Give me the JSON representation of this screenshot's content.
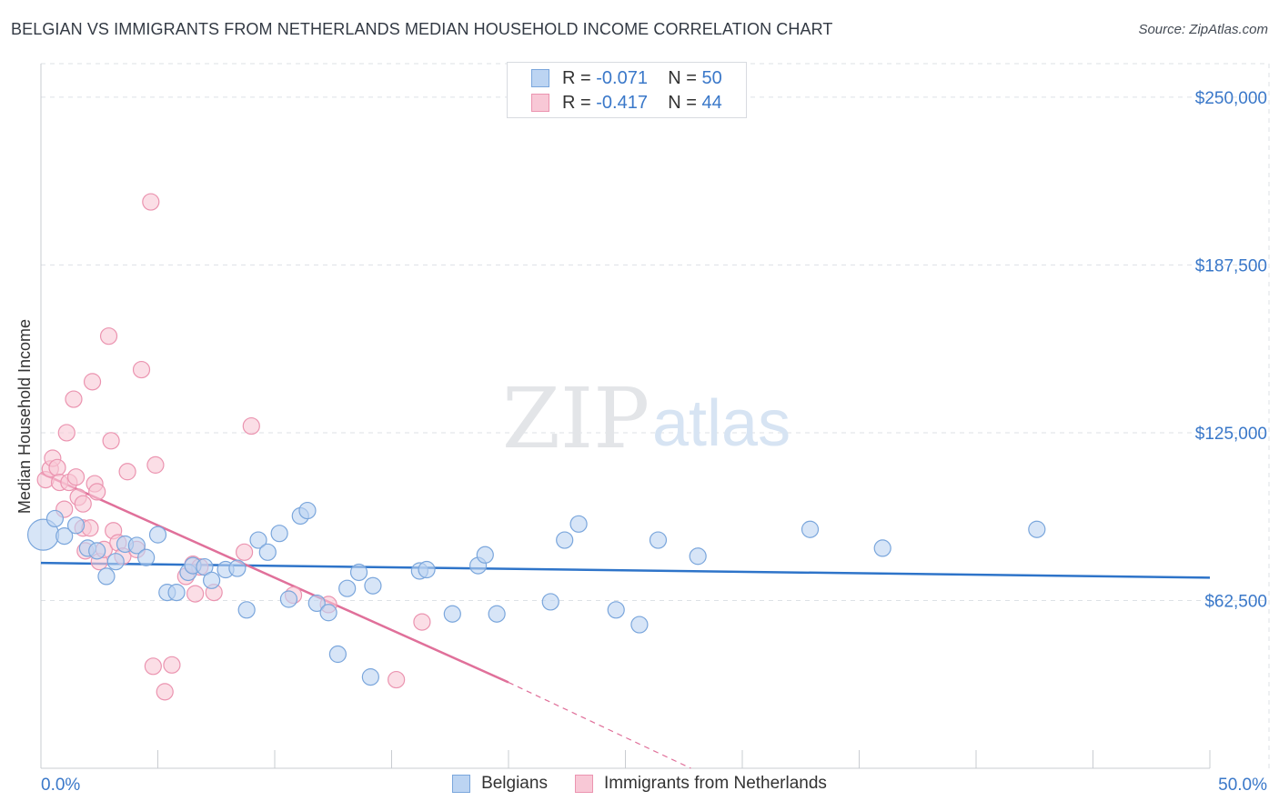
{
  "header": {
    "title": "BELGIAN VS IMMIGRANTS FROM NETHERLANDS MEDIAN HOUSEHOLD INCOME CORRELATION CHART",
    "source": "Source: ZipAtlas.com"
  },
  "watermark": {
    "zip": "ZIP",
    "atlas": "atlas"
  },
  "legend_top": [
    {
      "r_label": "R =",
      "r_value": "-0.071",
      "n_label": "N =",
      "n_value": "50"
    },
    {
      "r_label": "R =",
      "r_value": "-0.417",
      "n_label": "N =",
      "n_value": "44"
    }
  ],
  "legend_bottom": [
    "Belgians",
    "Immigrants from Netherlands"
  ],
  "colors": {
    "blue_fill": "#bcd4f2",
    "blue_stroke": "#7aa6dc",
    "blue_line": "#2e74c9",
    "pink_fill": "#f8c8d6",
    "pink_stroke": "#eb94b0",
    "pink_line": "#e0709a",
    "tick_label": "#3a78c9",
    "grid": "#dde1e6"
  },
  "chart_data": {
    "type": "scatter",
    "title": "BELGIAN VS IMMIGRANTS FROM NETHERLANDS MEDIAN HOUSEHOLD INCOME CORRELATION CHART",
    "xlabel": "",
    "ylabel": "Median Household Income",
    "xlim": [
      0,
      50
    ],
    "ylim": [
      0,
      262500
    ],
    "x_ticks_labeled": [
      "0.0%",
      "50.0%"
    ],
    "y_ticks": [
      62500,
      125000,
      187500,
      250000
    ],
    "y_tick_labels": [
      "$62,500",
      "$125,000",
      "$187,500",
      "$250,000"
    ],
    "grid": true,
    "legend_position": "bottom",
    "series": [
      {
        "name": "Belgians",
        "r": -0.071,
        "n": 50,
        "trend": {
          "x": [
            0,
            50
          ],
          "y": [
            76500,
            71000
          ]
        },
        "points": [
          {
            "x": 0.1,
            "y": 87000,
            "big": true
          },
          {
            "x": 0.6,
            "y": 93000
          },
          {
            "x": 1.0,
            "y": 86500
          },
          {
            "x": 1.5,
            "y": 90500
          },
          {
            "x": 2.0,
            "y": 82000
          },
          {
            "x": 2.4,
            "y": 81000
          },
          {
            "x": 2.8,
            "y": 71500
          },
          {
            "x": 3.2,
            "y": 77000
          },
          {
            "x": 3.6,
            "y": 83500
          },
          {
            "x": 4.1,
            "y": 83000
          },
          {
            "x": 4.5,
            "y": 78500
          },
          {
            "x": 5.0,
            "y": 87000
          },
          {
            "x": 5.4,
            "y": 65500
          },
          {
            "x": 5.8,
            "y": 65500
          },
          {
            "x": 6.3,
            "y": 73000
          },
          {
            "x": 6.5,
            "y": 75500
          },
          {
            "x": 7.0,
            "y": 75000
          },
          {
            "x": 7.3,
            "y": 70000
          },
          {
            "x": 7.9,
            "y": 74000
          },
          {
            "x": 8.4,
            "y": 74500
          },
          {
            "x": 8.8,
            "y": 59000
          },
          {
            "x": 9.3,
            "y": 85000
          },
          {
            "x": 9.7,
            "y": 80500
          },
          {
            "x": 10.2,
            "y": 87500
          },
          {
            "x": 10.6,
            "y": 63000
          },
          {
            "x": 11.1,
            "y": 94000
          },
          {
            "x": 11.4,
            "y": 96000
          },
          {
            "x": 11.8,
            "y": 61500
          },
          {
            "x": 12.3,
            "y": 58000
          },
          {
            "x": 12.7,
            "y": 42500
          },
          {
            "x": 13.1,
            "y": 67000
          },
          {
            "x": 13.6,
            "y": 73000
          },
          {
            "x": 14.1,
            "y": 34000
          },
          {
            "x": 14.2,
            "y": 68000
          },
          {
            "x": 16.2,
            "y": 73500
          },
          {
            "x": 16.5,
            "y": 74000
          },
          {
            "x": 17.6,
            "y": 57500
          },
          {
            "x": 18.7,
            "y": 75500
          },
          {
            "x": 19.0,
            "y": 79500
          },
          {
            "x": 19.5,
            "y": 57500
          },
          {
            "x": 21.8,
            "y": 62000
          },
          {
            "x": 22.4,
            "y": 85000
          },
          {
            "x": 23.0,
            "y": 91000
          },
          {
            "x": 24.6,
            "y": 59000
          },
          {
            "x": 25.6,
            "y": 53500
          },
          {
            "x": 26.4,
            "y": 85000
          },
          {
            "x": 28.1,
            "y": 79000
          },
          {
            "x": 32.9,
            "y": 89000
          },
          {
            "x": 36.0,
            "y": 82000
          },
          {
            "x": 42.6,
            "y": 89000
          }
        ]
      },
      {
        "name": "Immigrants from Netherlands",
        "r": -0.417,
        "n": 44,
        "trend": {
          "x": [
            0,
            20
          ],
          "y": [
            110000,
            32000
          ]
        },
        "trend_dashed": {
          "x": [
            20,
            27.8
          ],
          "y": [
            32000,
            0
          ]
        },
        "points": [
          {
            "x": 0.2,
            "y": 107500
          },
          {
            "x": 0.4,
            "y": 111500
          },
          {
            "x": 0.5,
            "y": 115500
          },
          {
            "x": 0.7,
            "y": 112000
          },
          {
            "x": 0.8,
            "y": 106500
          },
          {
            "x": 1.0,
            "y": 96500
          },
          {
            "x": 1.1,
            "y": 125000
          },
          {
            "x": 1.2,
            "y": 106500
          },
          {
            "x": 1.4,
            "y": 137500
          },
          {
            "x": 1.5,
            "y": 108500
          },
          {
            "x": 1.6,
            "y": 101000
          },
          {
            "x": 1.8,
            "y": 89500
          },
          {
            "x": 1.8,
            "y": 98500
          },
          {
            "x": 1.9,
            "y": 81000
          },
          {
            "x": 2.1,
            "y": 89500
          },
          {
            "x": 2.2,
            "y": 144000
          },
          {
            "x": 2.3,
            "y": 106000
          },
          {
            "x": 2.4,
            "y": 103000
          },
          {
            "x": 2.5,
            "y": 77000
          },
          {
            "x": 2.7,
            "y": 81500
          },
          {
            "x": 2.9,
            "y": 161000
          },
          {
            "x": 3.0,
            "y": 122000
          },
          {
            "x": 3.1,
            "y": 88500
          },
          {
            "x": 3.3,
            "y": 84000
          },
          {
            "x": 3.5,
            "y": 79000
          },
          {
            "x": 3.7,
            "y": 110500
          },
          {
            "x": 4.1,
            "y": 81500
          },
          {
            "x": 4.3,
            "y": 148500
          },
          {
            "x": 4.7,
            "y": 211000
          },
          {
            "x": 4.8,
            "y": 38000
          },
          {
            "x": 4.9,
            "y": 113000
          },
          {
            "x": 5.3,
            "y": 28500
          },
          {
            "x": 5.6,
            "y": 38500
          },
          {
            "x": 6.2,
            "y": 71500
          },
          {
            "x": 6.5,
            "y": 76000
          },
          {
            "x": 6.6,
            "y": 65000
          },
          {
            "x": 7.4,
            "y": 65500
          },
          {
            "x": 8.7,
            "y": 80500
          },
          {
            "x": 9.0,
            "y": 127500
          },
          {
            "x": 10.8,
            "y": 64500
          },
          {
            "x": 12.3,
            "y": 61000
          },
          {
            "x": 15.2,
            "y": 33000
          },
          {
            "x": 16.3,
            "y": 54500
          },
          {
            "x": 6.8,
            "y": 75000
          }
        ]
      }
    ]
  }
}
